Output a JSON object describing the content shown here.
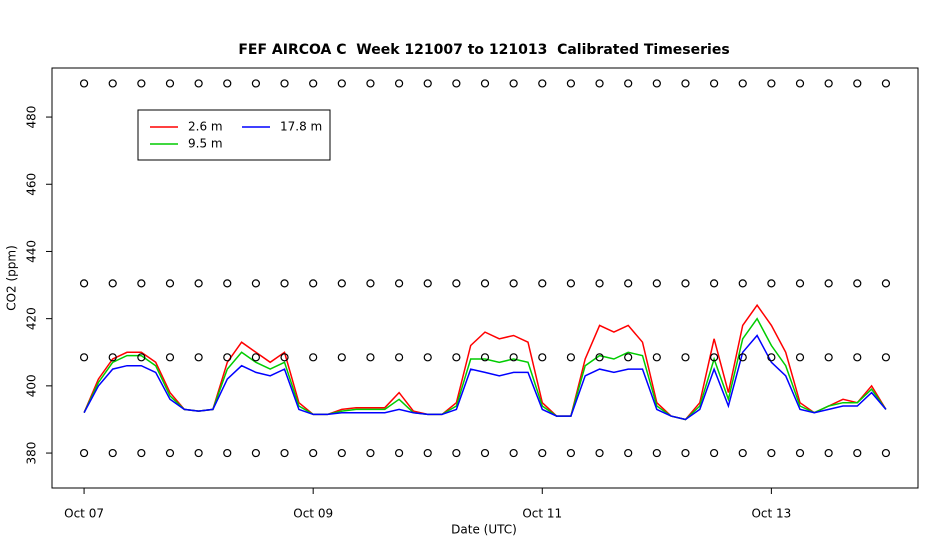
{
  "chart_data": {
    "type": "line",
    "title": "FEF AIRCOA C  Week 121007 to 121013  Calibrated Timeseries",
    "x_label": "Date (UTC)",
    "y_label": "CO2 (ppm)",
    "x": [
      0,
      0.125,
      0.25,
      0.375,
      0.5,
      0.625,
      0.75,
      0.875,
      1,
      1.125,
      1.25,
      1.375,
      1.5,
      1.625,
      1.75,
      1.875,
      2,
      2.125,
      2.25,
      2.375,
      2.5,
      2.625,
      2.75,
      2.875,
      3,
      3.125,
      3.25,
      3.375,
      3.5,
      3.625,
      3.75,
      3.875,
      4,
      4.125,
      4.25,
      4.375,
      4.5,
      4.625,
      4.75,
      4.875,
      5,
      5.125,
      5.25,
      5.375,
      5.5,
      5.625,
      5.75,
      5.875,
      6,
      6.125,
      6.25,
      6.375,
      6.5,
      6.625,
      6.75,
      6.875,
      7
    ],
    "series": [
      {
        "name": "2.6 m",
        "color": "#ff0000",
        "values": [
          392,
          402,
          408,
          410,
          410,
          407,
          398,
          393,
          392.5,
          393,
          407,
          413,
          410,
          407,
          410,
          395,
          391.5,
          391.5,
          393,
          393.5,
          393.5,
          393.5,
          398,
          392.5,
          391.5,
          391.5,
          395,
          412,
          416,
          414,
          415,
          413,
          395,
          391,
          391,
          408,
          418,
          416,
          418,
          413,
          395,
          391,
          390,
          395,
          414,
          398,
          418,
          424,
          418,
          410,
          395,
          392,
          394,
          396,
          395,
          400,
          393
        ]
      },
      {
        "name": "9.5 m",
        "color": "#00cc00",
        "values": [
          392,
          401,
          407,
          409,
          409,
          406,
          397,
          393,
          392.5,
          393,
          405,
          410,
          407,
          405,
          407,
          394,
          391.5,
          391.5,
          392.5,
          393,
          393,
          393,
          396,
          392,
          391.5,
          391.5,
          394,
          408,
          408,
          407,
          408,
          407,
          394,
          391,
          391,
          406,
          409,
          408,
          410,
          409,
          394,
          391,
          390,
          394,
          408,
          396,
          414,
          420,
          412,
          406,
          394,
          392,
          394,
          395,
          395,
          399,
          393
        ]
      },
      {
        "name": "17.8 m",
        "color": "#0000ff",
        "values": [
          392,
          400,
          405,
          406,
          406,
          404,
          396,
          393,
          392.5,
          393,
          402,
          406,
          404,
          403,
          405,
          393,
          391.5,
          391.5,
          392,
          392,
          392,
          392,
          393,
          392,
          391.5,
          391.5,
          393,
          405,
          404,
          403,
          404,
          404,
          393,
          391,
          391,
          403,
          405,
          404,
          405,
          405,
          393,
          391,
          390,
          393,
          405,
          394,
          410,
          415,
          407,
          403,
          393,
          392,
          393,
          394,
          394,
          398,
          393
        ]
      }
    ],
    "points": [
      {
        "color": "#000000",
        "x": [
          0,
          0.25,
          0.5,
          0.75,
          1,
          1.25,
          1.5,
          1.75,
          2,
          2.25,
          2.5,
          2.75,
          3,
          3.25,
          3.5,
          3.75,
          4,
          4.25,
          4.5,
          4.75,
          5,
          5.25,
          5.5,
          5.75,
          6,
          6.25,
          6.5,
          6.75,
          7
        ],
        "values": [
          490,
          490,
          490,
          490,
          490,
          490,
          490,
          490,
          490,
          490,
          490,
          490,
          490,
          490,
          490,
          490,
          490,
          490,
          490,
          490,
          490,
          490,
          490,
          490,
          490,
          490,
          490,
          490,
          490
        ]
      },
      {
        "color": "#000000",
        "x": [
          0,
          0.25,
          0.5,
          0.75,
          1,
          1.25,
          1.5,
          1.75,
          2,
          2.25,
          2.5,
          2.75,
          3,
          3.25,
          3.5,
          3.75,
          4,
          4.25,
          4.5,
          4.75,
          5,
          5.25,
          5.5,
          5.75,
          6,
          6.25,
          6.5,
          6.75,
          7
        ],
        "values": [
          430.5,
          430.5,
          430.5,
          430.5,
          430.5,
          430.5,
          430.5,
          430.5,
          430.5,
          430.5,
          430.5,
          430.5,
          430.5,
          430.5,
          430.5,
          430.5,
          430.5,
          430.5,
          430.5,
          430.5,
          430.5,
          430.5,
          430.5,
          430.5,
          430.5,
          430.5,
          430.5,
          430.5,
          430.5
        ]
      },
      {
        "color": "#000000",
        "x": [
          0,
          0.25,
          0.5,
          0.75,
          1,
          1.25,
          1.5,
          1.75,
          2,
          2.25,
          2.5,
          2.75,
          3,
          3.25,
          3.5,
          3.75,
          4,
          4.25,
          4.5,
          4.75,
          5,
          5.25,
          5.5,
          5.75,
          6,
          6.25,
          6.5,
          6.75,
          7
        ],
        "values": [
          408.5,
          408.5,
          408.5,
          408.5,
          408.5,
          408.5,
          408.5,
          408.5,
          408.5,
          408.5,
          408.5,
          408.5,
          408.5,
          408.5,
          408.5,
          408.5,
          408.5,
          408.5,
          408.5,
          408.5,
          408.5,
          408.5,
          408.5,
          408.5,
          408.5,
          408.5,
          408.5,
          408.5,
          408.5
        ]
      },
      {
        "color": "#000000",
        "x": [
          0,
          0.25,
          0.5,
          0.75,
          1,
          1.25,
          1.5,
          1.75,
          2,
          2.25,
          2.5,
          2.75,
          3,
          3.25,
          3.5,
          3.75,
          4,
          4.25,
          4.5,
          4.75,
          5,
          5.25,
          5.5,
          5.75,
          6,
          6.25,
          6.5,
          6.75,
          7
        ],
        "values": [
          380,
          380,
          380,
          380,
          380,
          380,
          380,
          380,
          380,
          380,
          380,
          380,
          380,
          380,
          380,
          380,
          380,
          380,
          380,
          380,
          380,
          380,
          380,
          380,
          380,
          380,
          380,
          380,
          380
        ]
      }
    ],
    "xlim": [
      -0.28,
      7.28
    ],
    "ylim": [
      369.6,
      494.6
    ],
    "xticks": [
      {
        "value": 0,
        "label": "Oct 07"
      },
      {
        "value": 2,
        "label": "Oct 09"
      },
      {
        "value": 4,
        "label": "Oct 11"
      },
      {
        "value": 6,
        "label": "Oct 13"
      }
    ],
    "yticks": [
      380,
      400,
      420,
      440,
      460,
      480
    ],
    "legend": "topleft"
  }
}
